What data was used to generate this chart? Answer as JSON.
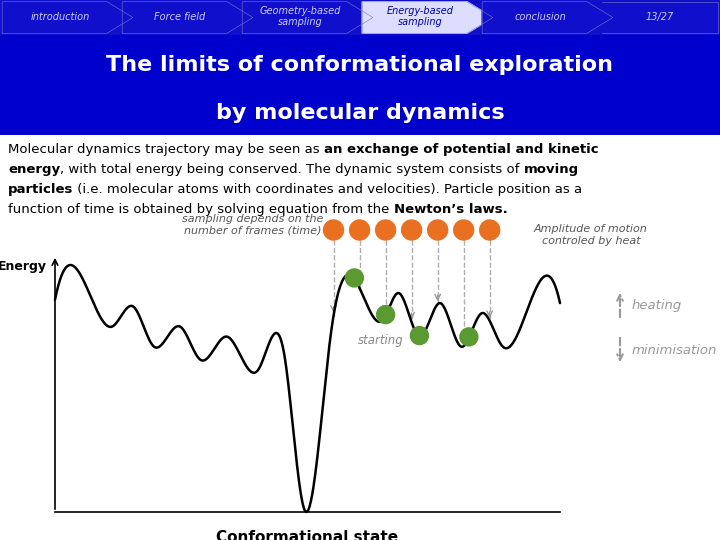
{
  "nav_items": [
    "introduction",
    "Force field",
    "Geometry-based\nsampling",
    "Energy-based\nsampling",
    "conclusion",
    "13/27"
  ],
  "nav_active": 3,
  "nav_bg": "#1010CC",
  "nav_text_color": "#CCCCFF",
  "nav_active_bg": "#DDDDFF",
  "nav_active_text": "#0000AA",
  "title_line1": "The limits of conformational exploration",
  "title_line2": "by molecular dynamics",
  "title_bg": "#0000CC",
  "title_text_color": "#FFFFFF",
  "body_bg": "#FFFFFF",
  "ylabel": "Energy",
  "xlabel": "Conformational state",
  "annotation_sampling": "sampling depends on the\nnumber of frames (time)",
  "annotation_amplitude": "Amplitude of motion\ncontroled by heat",
  "annotation_starting": "starting",
  "annotation_heating": "heating",
  "annotation_minimisation": "minimisation",
  "orange_color": "#E87020",
  "green_color": "#5A9A30",
  "arrow_color": "#999999"
}
